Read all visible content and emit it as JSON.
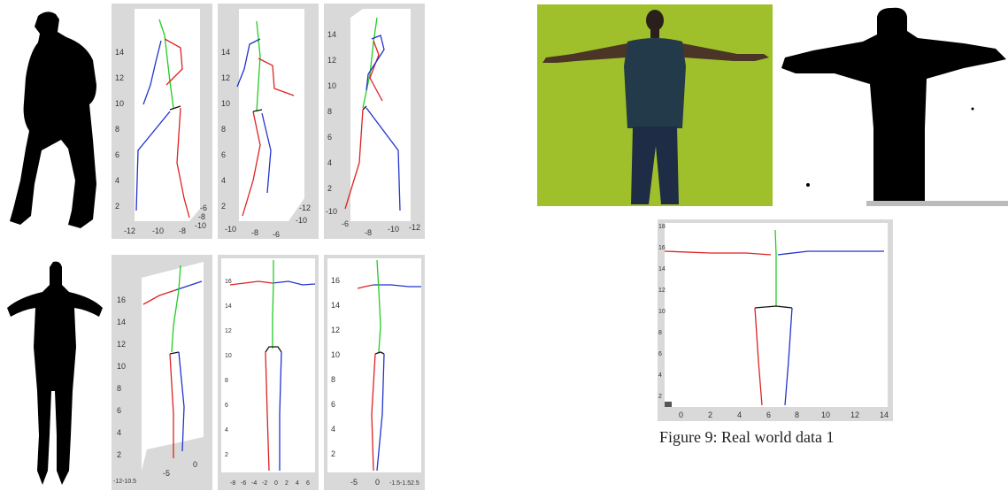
{
  "figure": {
    "caption": "Figure 9: Real world data 1"
  },
  "plots": {
    "row1_a": {
      "yticks": [
        "14",
        "12",
        "10",
        "8",
        "6",
        "4",
        "2"
      ],
      "xticks": [
        "-12",
        "-10",
        "-8"
      ],
      "zticks": [
        "-6",
        "-8",
        "-10"
      ]
    },
    "row1_b": {
      "yticks": [
        "14",
        "12",
        "10",
        "8",
        "6",
        "4",
        "2"
      ],
      "xticks": [
        "-10",
        "-8",
        "-6"
      ],
      "zticks": [
        "-12",
        "-10"
      ]
    },
    "row1_c": {
      "yticks": [
        "14",
        "12",
        "10",
        "8",
        "6",
        "4",
        "2"
      ],
      "xticks": [
        "-10",
        "-6",
        "-8",
        "-10",
        "-12"
      ]
    },
    "row2_a": {
      "yticks": [
        "16",
        "14",
        "12",
        "10",
        "8",
        "6",
        "4",
        "2"
      ],
      "xticks": [
        "-12-10.5",
        "-5",
        "0"
      ]
    },
    "row2_b": {
      "yticks": [
        "16",
        "14",
        "12",
        "10",
        "8",
        "6",
        "4",
        "2"
      ],
      "xticks": [
        "-8",
        "-6",
        "-4",
        "-2",
        "0",
        "2",
        "4",
        "6"
      ]
    },
    "row2_c": {
      "yticks": [
        "16",
        "14",
        "12",
        "10",
        "8",
        "6",
        "4",
        "2"
      ],
      "xticks": [
        "-5",
        "0",
        "-1.5-1.5",
        "2.5"
      ]
    },
    "realworld": {
      "yticks": [
        "18",
        "16",
        "14",
        "12",
        "10",
        "8",
        "6",
        "4",
        "2"
      ],
      "xticks": [
        "0",
        "2",
        "4",
        "6",
        "8",
        "10",
        "12",
        "14"
      ]
    }
  },
  "colors": {
    "panel_bg": "#d9d9d9",
    "plot_bg": "#ffffff",
    "left_limb": "#dd2222",
    "right_limb": "#2233cc",
    "spine": "#22cc22",
    "hip": "#111111",
    "photo_bg": "#9fc02a"
  }
}
